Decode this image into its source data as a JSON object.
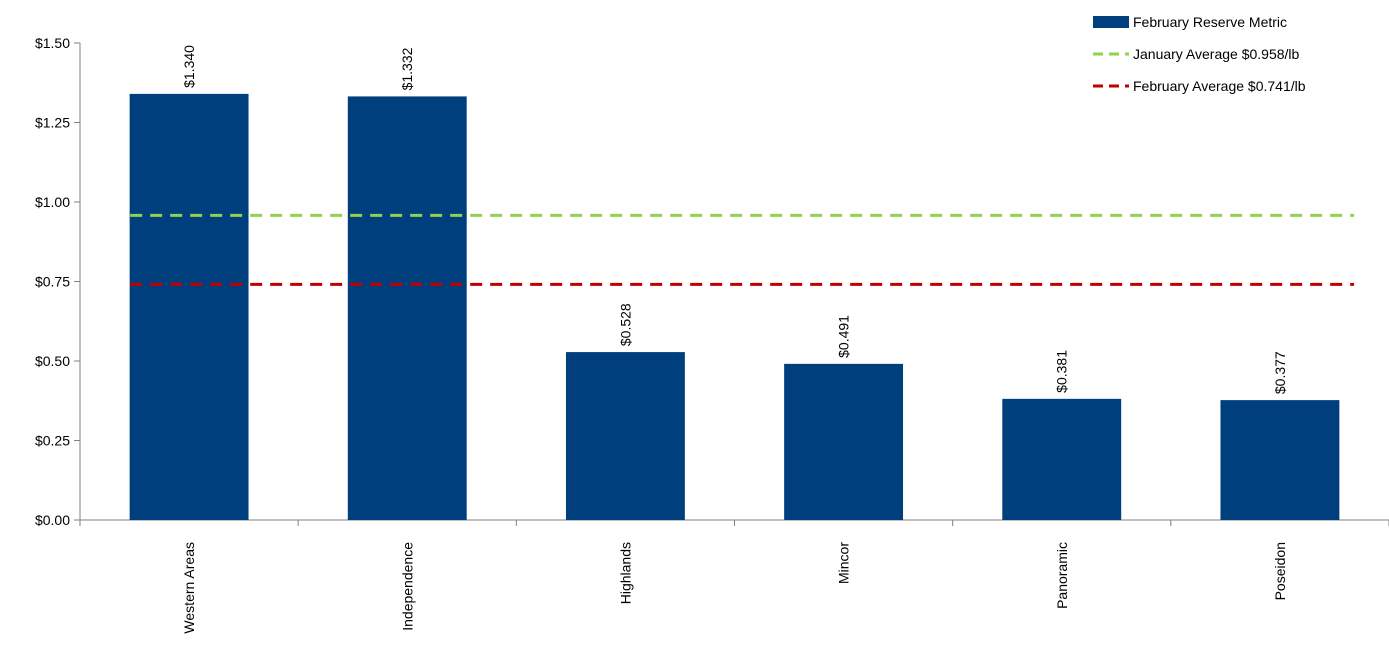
{
  "chart_data": {
    "type": "bar",
    "categories": [
      "Western Areas",
      "Independence",
      "Highlands",
      "Mincor",
      "Panoramic",
      "Poseidon"
    ],
    "series": [
      {
        "name": "February Reserve Metric",
        "values": [
          1.34,
          1.332,
          0.528,
          0.491,
          0.381,
          0.377
        ],
        "data_labels": [
          "$1.340",
          "$1.332",
          "$0.528",
          "$0.491",
          "$0.381",
          "$0.377"
        ],
        "color": "#003f7d"
      }
    ],
    "reference_lines": [
      {
        "name": "January Average $0.958/lb",
        "value": 0.958,
        "color": "#92d050",
        "style": "dashed"
      },
      {
        "name": "February Average $0.741/lb",
        "value": 0.741,
        "color": "#c00000",
        "style": "dashed"
      }
    ],
    "y_ticks": [
      0,
      0.25,
      0.5,
      0.75,
      1.0,
      1.25,
      1.5
    ],
    "y_tick_labels": [
      "$0.00",
      "$0.25",
      "$0.50",
      "$0.75",
      "$1.00",
      "$1.25",
      "$1.50"
    ],
    "ylim": [
      0,
      1.5
    ],
    "title": "",
    "xlabel": "",
    "ylabel": "",
    "grid": false,
    "legend_position": "top-right",
    "category_label_rotation": "vertical"
  }
}
